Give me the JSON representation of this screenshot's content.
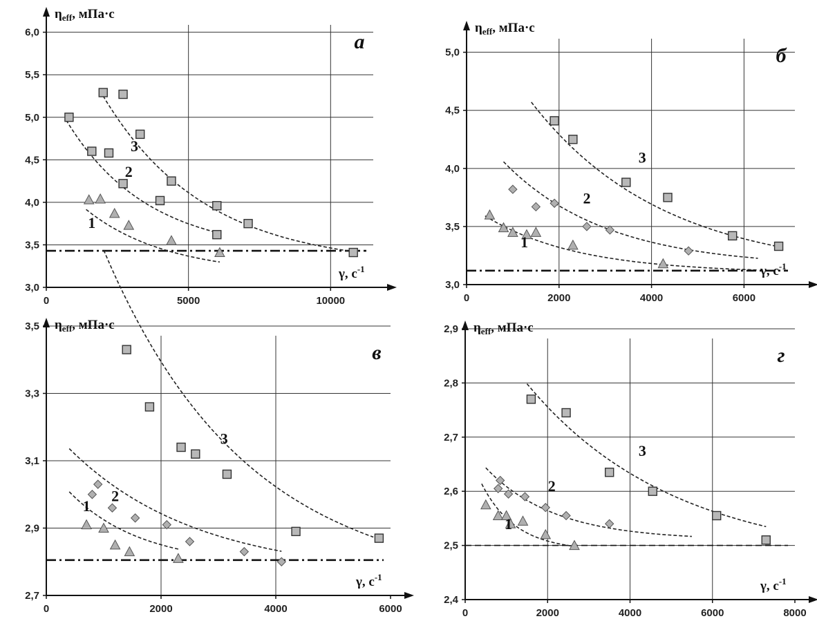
{
  "chart_data": [
    {
      "type": "scatter",
      "panel_letter": "а",
      "ylabel": "ηₑff, мПа·с",
      "ylabel_parts": {
        "symbol": "η",
        "sub": "eff",
        "unit": ", мПа·с"
      },
      "xlabel_parts": {
        "symbol": "γ",
        "unit": ", с",
        "sup": "-1"
      },
      "xlim": [
        0,
        11500
      ],
      "ylim": [
        3.0,
        6.2
      ],
      "xticks": [
        0,
        5000,
        10000
      ],
      "xtick_labels": [
        "0",
        "5000",
        "10000"
      ],
      "yticks": [
        3.0,
        3.5,
        4.0,
        4.5,
        5.0,
        5.5,
        6.0
      ],
      "ytick_labels": [
        "3,0",
        "3,5",
        "4,0",
        "4,5",
        "5,0",
        "5,5",
        "6,0"
      ],
      "grid": {
        "horizontal": true,
        "vertical": true
      },
      "reference_line": {
        "y": 3.43,
        "style": "dash-dot"
      },
      "series": [
        {
          "label": "1",
          "marker": "triangle",
          "x": [
            1500,
            1900,
            2400,
            2900,
            4400,
            6100
          ],
          "y": [
            4.03,
            4.04,
            3.87,
            3.73,
            3.55,
            3.41
          ],
          "fit_a": 3.15,
          "fit_b": 1.25,
          "fit_c": 0.00035,
          "fit_x": [
            1400,
            6100
          ]
        },
        {
          "label": "2",
          "marker": "square",
          "x": [
            800,
            1600,
            2200,
            2700,
            4000,
            6000
          ],
          "y": [
            5.0,
            4.6,
            4.58,
            4.22,
            4.02,
            3.62
          ],
          "fit_a": 3.4,
          "fit_b": 2.0,
          "fit_c": 0.00035,
          "fit_x": [
            700,
            6000
          ]
        },
        {
          "label": "3",
          "marker": "square",
          "x": [
            2000,
            2700,
            3300,
            4400,
            6000,
            7100,
            10800
          ],
          "y": [
            5.29,
            5.27,
            4.8,
            4.25,
            3.96,
            3.75,
            3.41
          ],
          "fit_a": 3.25,
          "fit_b": 3.5,
          "fit_c": 0.00028,
          "fit_x": [
            1900,
            10800
          ]
        }
      ],
      "curve_label_pos": [
        [
          1600,
          3.7
        ],
        [
          2900,
          4.3
        ],
        [
          3100,
          4.6
        ]
      ]
    },
    {
      "type": "scatter",
      "panel_letter": "б",
      "ylabel": "ηₑff, мПа·с",
      "ylabel_parts": {
        "symbol": "η",
        "sub": "eff",
        "unit": ", мПа·с"
      },
      "xlabel_parts": {
        "symbol": "γ",
        "unit": ", с",
        "sup": "-1"
      },
      "xlim": [
        0,
        7100
      ],
      "ylim": [
        3.0,
        5.2
      ],
      "xticks": [
        0,
        2000,
        4000,
        6000
      ],
      "xtick_labels": [
        "0",
        "2000",
        "4000",
        "6000"
      ],
      "yticks": [
        3.0,
        3.5,
        4.0,
        4.5,
        5.0
      ],
      "ytick_labels": [
        "3,0",
        "3,5",
        "4,0",
        "4,5",
        "5,0"
      ],
      "grid": {
        "horizontal": true,
        "vertical": true
      },
      "reference_line": {
        "y": 3.12,
        "style": "dash-dot"
      },
      "series": [
        {
          "label": "1",
          "marker": "triangle",
          "x": [
            500,
            800,
            1000,
            1300,
            1500,
            2300,
            4250
          ],
          "y": [
            3.6,
            3.49,
            3.45,
            3.43,
            3.45,
            3.34,
            3.18
          ],
          "fit_a": 3.1,
          "fit_b": 0.6,
          "fit_c": 0.0005,
          "fit_x": [
            400,
            6300
          ]
        },
        {
          "label": "2",
          "marker": "diamond",
          "x": [
            1000,
            1500,
            1900,
            2600,
            3100,
            4800
          ],
          "y": [
            3.82,
            3.67,
            3.7,
            3.5,
            3.47,
            3.29
          ],
          "fit_a": 3.15,
          "fit_b": 1.3,
          "fit_c": 0.00045,
          "fit_x": [
            800,
            6300
          ]
        },
        {
          "label": "3",
          "marker": "square",
          "x": [
            1900,
            2300,
            3450,
            4350,
            5750,
            6750
          ],
          "y": [
            4.41,
            4.25,
            3.88,
            3.75,
            3.42,
            3.33
          ],
          "fit_a": 3.1,
          "fit_b": 2.4,
          "fit_c": 0.00035,
          "fit_x": [
            1400,
            6750
          ]
        }
      ],
      "curve_label_pos": [
        [
          1250,
          3.32
        ],
        [
          2600,
          3.7
        ],
        [
          3800,
          4.05
        ]
      ]
    },
    {
      "type": "scatter",
      "panel_letter": "в",
      "ylabel": "ηₑff, мПа·с",
      "ylabel_parts": {
        "symbol": "η",
        "sub": "eff",
        "unit": ", мПа·с"
      },
      "xlabel_parts": {
        "symbol": "γ",
        "unit": ", с",
        "sup": "-1"
      },
      "xlim": [
        0,
        6000
      ],
      "ylim": [
        2.7,
        3.5
      ],
      "xticks": [
        0,
        2000,
        4000,
        6000
      ],
      "xtick_labels": [
        "0",
        "2000",
        "4000",
        "6000"
      ],
      "yticks": [
        2.7,
        2.9,
        3.1,
        3.3,
        3.5
      ],
      "ytick_labels": [
        "2,7",
        "2,9",
        "3,1",
        "3,3",
        "3,5"
      ],
      "grid": {
        "horizontal": true,
        "vertical": true
      },
      "reference_line": {
        "y": 2.805,
        "style": "dash-dot"
      },
      "series": [
        {
          "label": "1",
          "marker": "triangle",
          "x": [
            700,
            1000,
            1200,
            1450,
            2300
          ],
          "y": [
            2.91,
            2.9,
            2.85,
            2.83,
            2.81
          ],
          "fit_a": 2.79,
          "fit_b": 0.3,
          "fit_c": 0.0008,
          "fit_x": [
            400,
            2300
          ]
        },
        {
          "label": "2",
          "marker": "diamond",
          "x": [
            800,
            900,
            1150,
            1550,
            2100,
            2500,
            3450,
            4100
          ],
          "y": [
            3.0,
            3.03,
            2.96,
            2.93,
            2.91,
            2.86,
            2.83,
            2.8
          ],
          "fit_a": 2.76,
          "fit_b": 0.45,
          "fit_c": 0.00045,
          "fit_x": [
            400,
            4100
          ]
        },
        {
          "label": "3",
          "marker": "square",
          "x": [
            1400,
            1800,
            2350,
            2600,
            3150,
            4350,
            5800
          ],
          "y": [
            3.43,
            3.26,
            3.14,
            3.12,
            3.06,
            2.89,
            2.87
          ],
          "fit_a": 2.72,
          "fit_b": 1.5,
          "fit_c": 0.0004,
          "fit_x": [
            1000,
            5700
          ]
        }
      ],
      "curve_label_pos": [
        [
          700,
          2.95
        ],
        [
          1200,
          2.98
        ],
        [
          3100,
          3.15
        ]
      ]
    },
    {
      "type": "scatter",
      "panel_letter": "г",
      "ylabel": "ηₑff, мПа·с",
      "ylabel_parts": {
        "symbol": "η",
        "sub": "eff",
        "unit": ", мПа·с"
      },
      "xlabel_parts": {
        "symbol": "γ",
        "unit": ", с",
        "sup": "-1"
      },
      "xlim": [
        0,
        8000
      ],
      "ylim": [
        2.4,
        2.9
      ],
      "xticks": [
        0,
        2000,
        4000,
        6000,
        8000
      ],
      "xtick_labels": [
        "0",
        "2000",
        "4000",
        "6000",
        "8000"
      ],
      "yticks": [
        2.4,
        2.5,
        2.6,
        2.7,
        2.8,
        2.9
      ],
      "ytick_labels": [
        "2,4",
        "2,5",
        "2,6",
        "2,7",
        "2,8",
        "2,9"
      ],
      "grid": {
        "horizontal": true,
        "vertical": true
      },
      "reference_line": {
        "y": 2.5,
        "style": "dashed"
      },
      "series": [
        {
          "label": "1",
          "marker": "triangle",
          "x": [
            500,
            800,
            1000,
            1100,
            1400,
            1950,
            2650
          ],
          "y": [
            2.575,
            2.555,
            2.555,
            2.54,
            2.545,
            2.52,
            2.5
          ],
          "fit_a": 2.49,
          "fit_b": 0.2,
          "fit_c": 0.0012,
          "fit_x": [
            400,
            2700
          ]
        },
        {
          "label": "2",
          "marker": "diamond",
          "x": [
            800,
            850,
            1050,
            1450,
            1950,
            2450,
            3500
          ],
          "y": [
            2.605,
            2.62,
            2.595,
            2.59,
            2.57,
            2.555,
            2.54
          ],
          "fit_a": 2.51,
          "fit_b": 0.18,
          "fit_c": 0.0006,
          "fit_x": [
            500,
            5500
          ]
        },
        {
          "label": "3",
          "marker": "square",
          "x": [
            1600,
            2450,
            3500,
            4550,
            6100,
            7300
          ],
          "y": [
            2.77,
            2.745,
            2.635,
            2.6,
            2.555,
            2.51
          ],
          "fit_a": 2.47,
          "fit_b": 0.5,
          "fit_c": 0.00028,
          "fit_x": [
            1500,
            7300
          ]
        }
      ],
      "curve_label_pos": [
        [
          1050,
          2.53
        ],
        [
          2100,
          2.6
        ],
        [
          4300,
          2.665
        ]
      ]
    }
  ]
}
